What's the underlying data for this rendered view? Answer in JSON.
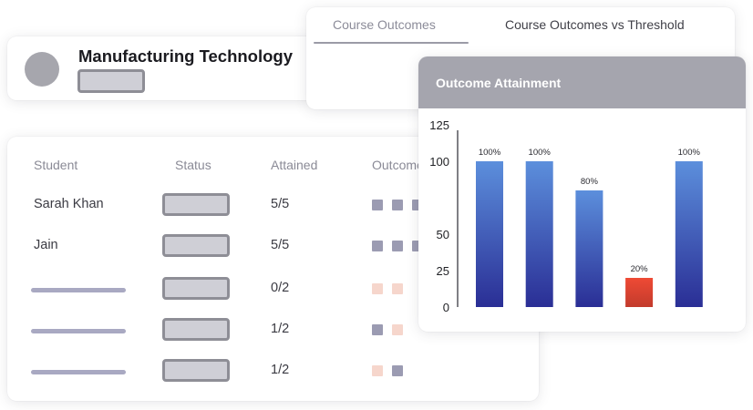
{
  "course": {
    "title": "Manufacturing Technology"
  },
  "tabs": [
    {
      "label": "Course Outcomes",
      "active": true
    },
    {
      "label": "Course Outcomes vs Threshold",
      "active": false
    }
  ],
  "table": {
    "columns": [
      "Student",
      "Status",
      "Attained",
      "Outcome"
    ],
    "rows": [
      {
        "student": "Sarah Khan",
        "attained": "5/5",
        "outcomes": [
          "met",
          "met",
          "met"
        ]
      },
      {
        "student": "Jain",
        "attained": "5/5",
        "outcomes": [
          "met",
          "met",
          "met"
        ]
      },
      {
        "student": "",
        "attained": "0/2",
        "outcomes": [
          "unmet",
          "unmet"
        ]
      },
      {
        "student": "",
        "attained": "1/2",
        "outcomes": [
          "met",
          "unmet"
        ]
      },
      {
        "student": "",
        "attained": "1/2",
        "outcomes": [
          "unmet",
          "met"
        ]
      }
    ]
  },
  "colors": {
    "met": "#9b9bb2",
    "unmet": "#f6d6cc",
    "bar_top": "#5c8fdc",
    "bar_bottom": "#2a2e95",
    "bar_low_top": "#ef4a35",
    "bar_low_bottom": "#c23b2c",
    "header_gray": "#a5a5ae"
  },
  "chart": {
    "title": "Outcome Attainment"
  },
  "chart_data": {
    "type": "bar",
    "categories": [
      "",
      "",
      "",
      "",
      ""
    ],
    "values": [
      100,
      100,
      80,
      20,
      100
    ],
    "data_labels": [
      "100%",
      "100%",
      "80%",
      "20%",
      "100%"
    ],
    "highlight_index": 3,
    "yticks": [
      "0",
      "25",
      "50",
      "100",
      "125"
    ],
    "ylim": [
      0,
      125
    ],
    "xlabel": "",
    "ylabel": "",
    "grid": false
  }
}
